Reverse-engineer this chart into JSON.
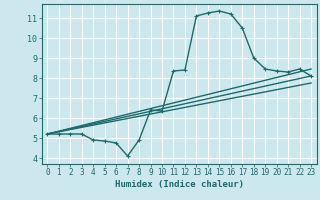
{
  "xlabel": "Humidex (Indice chaleur)",
  "bg_color": "#cce8ee",
  "grid_color": "#ffffff",
  "line_color": "#1a6b6b",
  "xlim": [
    -0.5,
    23.5
  ],
  "ylim": [
    3.7,
    11.7
  ],
  "xticks": [
    0,
    1,
    2,
    3,
    4,
    5,
    6,
    7,
    8,
    9,
    10,
    11,
    12,
    13,
    14,
    15,
    16,
    17,
    18,
    19,
    20,
    21,
    22,
    23
  ],
  "yticks": [
    4,
    5,
    6,
    7,
    8,
    9,
    10,
    11
  ],
  "series": [
    {
      "x": [
        0,
        1,
        2,
        3,
        4,
        5,
        6,
        7,
        8,
        9,
        10,
        11,
        12,
        13,
        14,
        15,
        16,
        17,
        18,
        19,
        20,
        21,
        22,
        23
      ],
      "y": [
        5.2,
        5.2,
        5.2,
        5.2,
        4.9,
        4.85,
        4.75,
        4.1,
        4.9,
        6.4,
        6.35,
        8.35,
        8.4,
        11.1,
        11.25,
        11.35,
        11.2,
        10.5,
        9.0,
        8.45,
        8.35,
        8.3,
        8.45,
        8.1
      ],
      "marker": true,
      "linewidth": 1.0
    },
    {
      "x": [
        0,
        23
      ],
      "y": [
        5.2,
        8.45
      ],
      "marker": false,
      "linewidth": 1.0
    },
    {
      "x": [
        0,
        23
      ],
      "y": [
        5.2,
        8.1
      ],
      "marker": false,
      "linewidth": 1.0
    },
    {
      "x": [
        0,
        23
      ],
      "y": [
        5.2,
        7.75
      ],
      "marker": false,
      "linewidth": 1.0
    }
  ]
}
